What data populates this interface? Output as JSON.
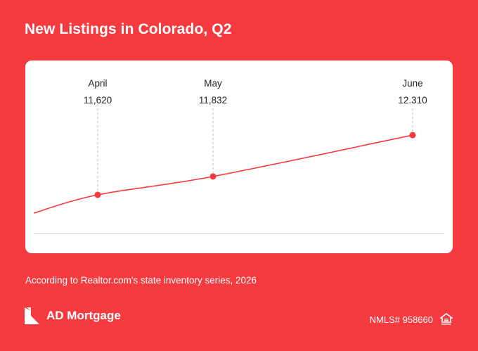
{
  "header": {
    "title": "New Listings in Colorado, Q2"
  },
  "chart_data": {
    "type": "line",
    "categories": [
      "April",
      "May",
      "June"
    ],
    "values": [
      11620,
      11832,
      12310
    ],
    "value_labels": [
      "11,620",
      "11,832",
      "12.310"
    ],
    "ylim": [
      11400,
      12400
    ],
    "grid": false,
    "line_color": "#f53b40"
  },
  "footer": {
    "source": "According to Realtor.com's state inventory series, 2026",
    "brand": "AD Mortgage",
    "nmls": "NMLS# 958660"
  },
  "icons": {
    "logo": "ad-mortgage-logo-icon",
    "equal_housing": "equal-housing-icon"
  }
}
